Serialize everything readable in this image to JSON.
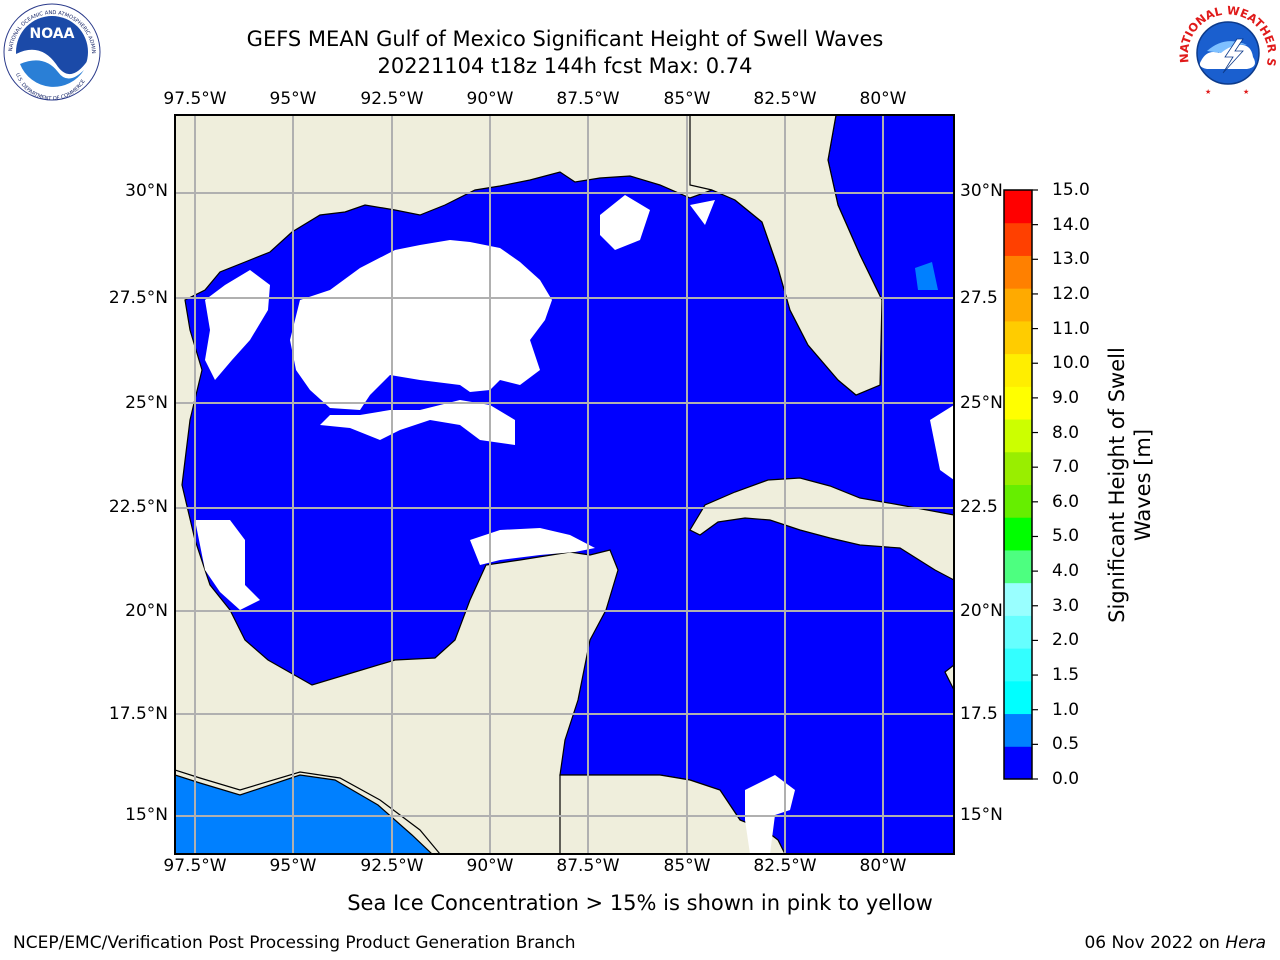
{
  "header": {
    "title": "GEFS MEAN Gulf of Mexico Significant Height of Swell Waves",
    "subtitle": "20221104 t18z 144h fcst   Max: 0.74"
  },
  "logos": {
    "noaa_text": "NOAA",
    "noaa_ring": "NATIONAL OCEANIC AND ATMOSPHERIC ADMINISTRATION",
    "noaa_ring_bottom": "U.S. DEPARTMENT OF COMMERCE",
    "nws_ring": "NATIONAL WEATHER SERVICE"
  },
  "map": {
    "lon_ticks": [
      "97.5°W",
      "95°W",
      "92.5°W",
      "90°W",
      "87.5°W",
      "85°W",
      "82.5°W",
      "80°W"
    ],
    "lat_ticks": [
      "30°N",
      "27.5°N",
      "25°N",
      "22.5°N",
      "20°N",
      "17.5°N",
      "15°N"
    ],
    "lat_ticks_right": [
      "30°N",
      "27.5",
      "25°N",
      "22.5",
      "20°N",
      "17.5",
      "15°N"
    ],
    "colors": {
      "land": "#efeedc",
      "no_data": "#ffffff",
      "swell_0": "#0000ff",
      "swell_05": "#0080ff"
    }
  },
  "colorbar": {
    "label": "Significant Height of Swell Waves [m]",
    "label_line1": "Significant Height of Swell",
    "label_line2": "Waves [m]",
    "ticks": [
      "0.0",
      "0.5",
      "1.0",
      "1.5",
      "2.0",
      "3.0",
      "4.0",
      "5.0",
      "6.0",
      "7.0",
      "8.0",
      "9.0",
      "10.0",
      "11.0",
      "12.0",
      "13.0",
      "14.0",
      "15.0"
    ],
    "colors": [
      "#0000ff",
      "#0080ff",
      "#00ffff",
      "#33ffff",
      "#66ffff",
      "#99ffff",
      "#4dff80",
      "#00ff00",
      "#66ee00",
      "#99ee00",
      "#ccff00",
      "#ffff00",
      "#ffee00",
      "#ffcc00",
      "#ffaa00",
      "#ff8000",
      "#ff4000",
      "#ff0000"
    ]
  },
  "notes": {
    "ice": "Sea Ice Concentration > 15% is shown in pink to yellow"
  },
  "footer": {
    "left": "NCEP/EMC/Verification Post Processing Product Generation Branch",
    "date": "06 Nov 2022 on ",
    "machine": "Hera"
  }
}
